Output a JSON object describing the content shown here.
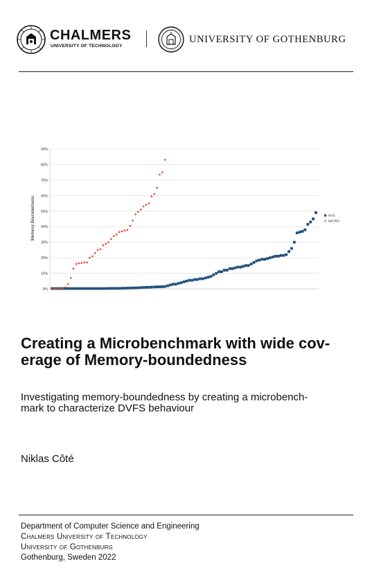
{
  "header": {
    "chalmers_name": "CHALMERS",
    "chalmers_sub": "UNIVERSITY OF TECHNOLOGY",
    "gu_name": "UNIVERSITY OF GOTHENBURG"
  },
  "title": "Creating a Microbenchmark with wide cov-erage of Memory-boundedness",
  "title_line1": "Creating a Microbenchmark with wide cov-",
  "title_line2": "erage of Memory-boundedness",
  "subtitle_line1": "Investigating memory-boundedness by creating a microbench-",
  "subtitle_line2": "mark to characterize DVFS behaviour",
  "author": "Niklas Côté",
  "footer": {
    "department": "Department of Computer Science and Engineering",
    "chalmers": "Chalmers University of Technology",
    "gothenburg": "University of Gothenburg",
    "place": "Gothenburg, Sweden 2022"
  },
  "chart_data": {
    "type": "scatter",
    "title": "",
    "xlabel": "",
    "ylabel": "Memory Boundedness",
    "ylim": [
      0,
      90
    ],
    "yticks": [
      "0%",
      "10%",
      "20%",
      "30%",
      "40%",
      "50%",
      "60%",
      "70%",
      "80%",
      "90%"
    ],
    "grid": true,
    "legend_position": "right",
    "colors": {
      "NAS": "#1f4e79",
      "MICRO": "#e8452a"
    },
    "series": [
      {
        "name": "NAS",
        "marker": "square",
        "values": [
          0.2,
          0.2,
          0.2,
          0.2,
          0.2,
          0.2,
          0.2,
          0.2,
          0.2,
          0.2,
          0.2,
          0.2,
          0.2,
          0.2,
          0.2,
          0.2,
          0.2,
          0.2,
          0.2,
          0.2,
          0.2,
          0.3,
          0.3,
          0.3,
          0.3,
          0.3,
          0.4,
          0.4,
          0.5,
          0.5,
          0.6,
          0.6,
          0.7,
          0.8,
          0.9,
          1,
          1,
          1.1,
          1.2,
          1.3,
          1.3,
          1.4,
          1.5,
          2,
          2.5,
          3,
          3,
          3.5,
          4,
          4.5,
          5,
          5.5,
          5.5,
          6,
          6,
          6.5,
          6.5,
          7,
          7.5,
          8,
          9,
          10,
          11,
          11,
          12,
          12,
          13,
          13,
          13.5,
          14,
          14,
          14.5,
          15,
          15,
          16,
          17,
          18,
          18.5,
          19,
          19,
          19.5,
          20,
          20.5,
          21,
          21,
          21.5,
          21.5,
          22,
          24,
          26,
          30,
          36,
          36.5,
          37,
          38,
          41.5,
          43,
          45,
          49
        ]
      },
      {
        "name": "MICRO",
        "marker": "circle",
        "values": [
          0.2,
          0.2,
          0.2,
          0.2,
          0.2,
          1,
          3,
          7,
          13,
          16,
          16.5,
          16.5,
          17,
          17,
          20,
          21,
          23,
          25,
          25.5,
          28,
          29,
          30,
          32,
          34,
          35,
          36.5,
          37,
          37.5,
          38,
          40.5,
          44,
          48,
          49.5,
          51,
          53,
          54,
          55,
          59.5,
          61,
          65,
          73.5,
          75,
          83
        ]
      }
    ]
  }
}
